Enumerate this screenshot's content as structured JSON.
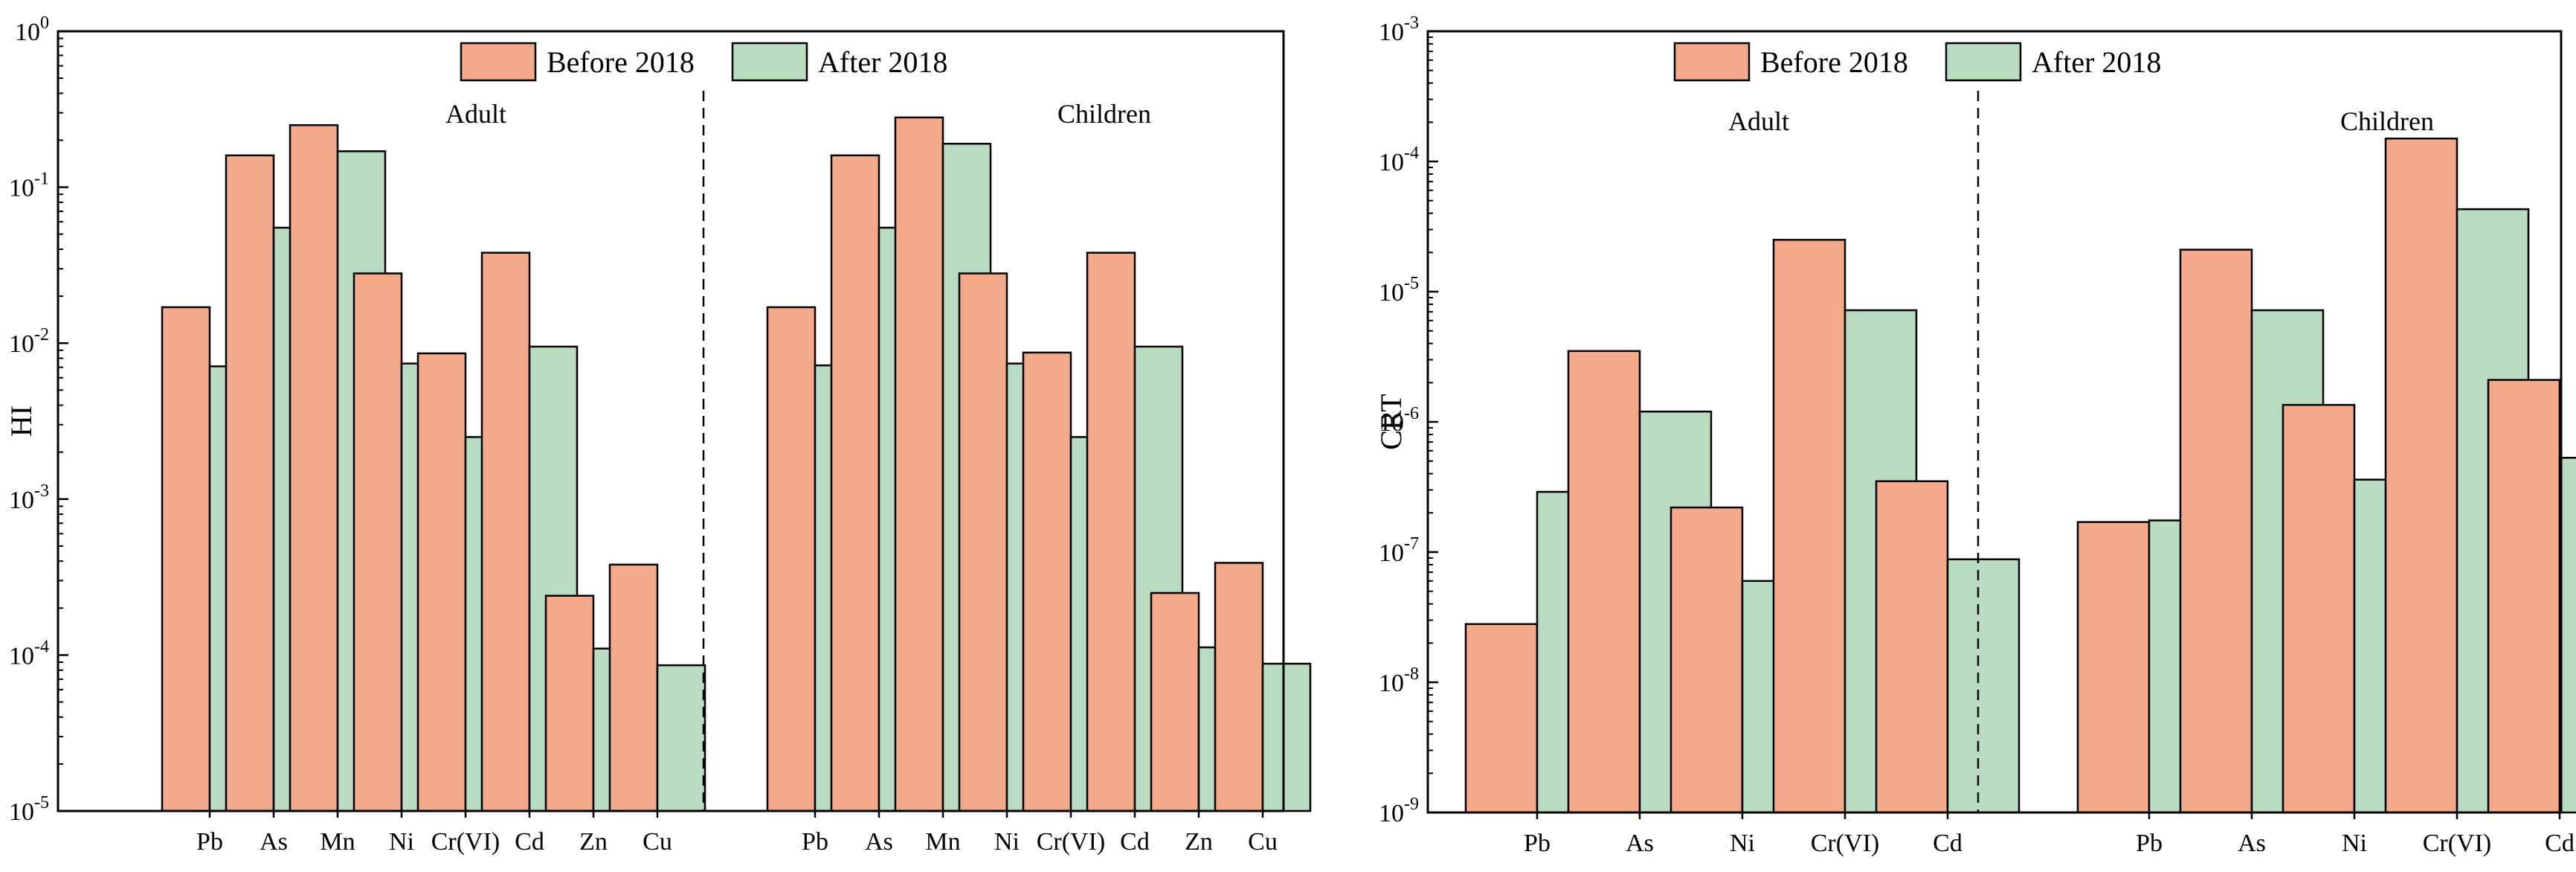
{
  "legend": {
    "before": "Before 2018",
    "after": "After 2018"
  },
  "colors": {
    "before": "#f4a98b",
    "after": "#b9dbbf",
    "edge": "#000000"
  },
  "chart_data": [
    {
      "type": "bar",
      "scale": "log",
      "ylabel": "HI",
      "ylim_exp": [
        -5,
        0
      ],
      "y_ticks": [
        {
          "base": "10",
          "exp": "-5"
        },
        {
          "base": "10",
          "exp": "-4"
        },
        {
          "base": "10",
          "exp": "-3"
        },
        {
          "base": "10",
          "exp": "-2"
        },
        {
          "base": "10",
          "exp": "-1"
        },
        {
          "base": "10",
          "exp": "0"
        }
      ],
      "groups": [
        {
          "label": "Adult",
          "categories": [
            "Pb",
            "As",
            "Mn",
            "Ni",
            "Cr(VI)",
            "Cd",
            "Zn",
            "Cu"
          ],
          "series": [
            {
              "name": "Before 2018",
              "values": [
                0.017,
                0.16,
                0.25,
                0.028,
                0.0086,
                0.038,
                0.00024,
                0.00038
              ]
            },
            {
              "name": "After 2018",
              "values": [
                0.0071,
                0.055,
                0.17,
                0.0074,
                0.0025,
                0.0095,
                0.00011,
                8.6e-05
              ]
            }
          ]
        },
        {
          "label": "Children",
          "categories": [
            "Pb",
            "As",
            "Mn",
            "Ni",
            "Cr(VI)",
            "Cd",
            "Zn",
            "Cu"
          ],
          "series": [
            {
              "name": "Before 2018",
              "values": [
                0.017,
                0.16,
                0.28,
                0.028,
                0.0087,
                0.038,
                0.00025,
                0.00039
              ]
            },
            {
              "name": "After 2018",
              "values": [
                0.0072,
                0.055,
                0.19,
                0.0074,
                0.0025,
                0.0095,
                0.000112,
                8.8e-05
              ]
            }
          ]
        }
      ]
    },
    {
      "type": "bar",
      "scale": "log",
      "ylabel": "CRT",
      "ylim_exp": [
        -9,
        -3
      ],
      "y_ticks": [
        {
          "base": "10",
          "exp": "-9"
        },
        {
          "base": "10",
          "exp": "-8"
        },
        {
          "base": "10",
          "exp": "-7"
        },
        {
          "base": "10",
          "exp": "-6"
        },
        {
          "base": "10",
          "exp": "-5"
        },
        {
          "base": "10",
          "exp": "-4"
        },
        {
          "base": "10",
          "exp": "-3"
        }
      ],
      "groups": [
        {
          "label": "Adult",
          "categories": [
            "Pb",
            "As",
            "Ni",
            "Cr(VI)",
            "Cd"
          ],
          "series": [
            {
              "name": "Before 2018",
              "values": [
                2.8e-08,
                3.5e-06,
                2.2e-07,
                2.5e-05,
                3.5e-07
              ]
            },
            {
              "name": "After 2018",
              "values": [
                2.9e-07,
                1.2e-06,
                6e-08,
                7.2e-06,
                8.8e-08
              ]
            }
          ]
        },
        {
          "label": "Children",
          "categories": [
            "Pb",
            "As",
            "Ni",
            "Cr(VI)",
            "Cd"
          ],
          "series": [
            {
              "name": "Before 2018",
              "values": [
                1.7e-07,
                2.1e-05,
                1.35e-06,
                0.00015,
                2.1e-06
              ]
            },
            {
              "name": "After 2018",
              "values": [
                1.75e-07,
                7.2e-06,
                3.6e-07,
                4.3e-05,
                5.3e-07
              ]
            }
          ]
        }
      ]
    }
  ]
}
